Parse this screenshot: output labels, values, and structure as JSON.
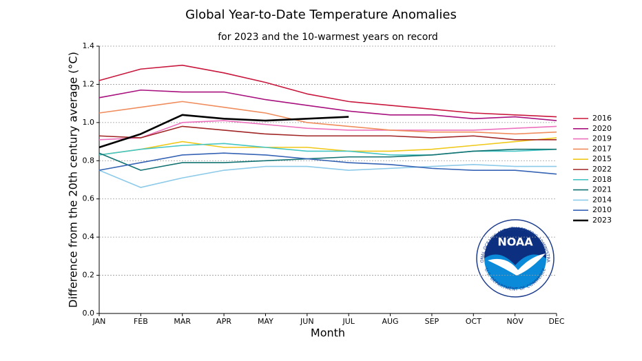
{
  "chart_data": {
    "type": "line",
    "title": "Global Year-to-Date Temperature Anomalies",
    "subtitle": "for 2023 and the 10-warmest years on record",
    "x_label": "Month",
    "y_label": "Difference from the 20th century average (°C)",
    "categories": [
      "JAN",
      "FEB",
      "MAR",
      "APR",
      "MAY",
      "JUN",
      "JUL",
      "AUG",
      "SEP",
      "OCT",
      "NOV",
      "DEC"
    ],
    "ylim": [
      0,
      1.4
    ],
    "yticks": [
      {
        "value": 0,
        "label": "0.0"
      },
      0.2,
      0.4,
      0.6,
      0.8,
      {
        "value": 1,
        "label": "1.0"
      },
      1.2,
      1.4
    ],
    "grid": true,
    "legend": "right",
    "series": [
      {
        "name": "2016",
        "color": "#c8163c",
        "values": [
          1.22,
          1.28,
          1.3,
          1.26,
          1.21,
          1.15,
          1.11,
          1.09,
          1.07,
          1.05,
          1.04,
          1.03
        ]
      },
      {
        "name": "2020",
        "color": "#a8107e",
        "values": [
          1.13,
          1.17,
          1.16,
          1.16,
          1.12,
          1.09,
          1.06,
          1.04,
          1.04,
          1.02,
          1.03,
          1.01
        ]
      },
      {
        "name": "2019",
        "color": "#ec70bc",
        "values": [
          0.91,
          0.92,
          1.0,
          1.01,
          0.99,
          0.97,
          0.96,
          0.96,
          0.96,
          0.96,
          0.97,
          0.98
        ]
      },
      {
        "name": "2017",
        "color": "#f08c5c",
        "values": [
          1.05,
          1.08,
          1.11,
          1.08,
          1.05,
          1.0,
          0.98,
          0.96,
          0.95,
          0.95,
          0.94,
          0.95
        ]
      },
      {
        "name": "2015",
        "color": "#f0c818",
        "values": [
          0.83,
          0.86,
          0.9,
          0.87,
          0.87,
          0.87,
          0.85,
          0.85,
          0.86,
          0.88,
          0.9,
          0.92
        ]
      },
      {
        "name": "2022",
        "color": "#a02424",
        "values": [
          0.93,
          0.92,
          0.98,
          0.96,
          0.94,
          0.93,
          0.93,
          0.93,
          0.92,
          0.93,
          0.91,
          0.91
        ]
      },
      {
        "name": "2018",
        "color": "#44c4c4",
        "values": [
          0.83,
          0.86,
          0.88,
          0.89,
          0.87,
          0.85,
          0.85,
          0.83,
          0.83,
          0.85,
          0.85,
          0.86
        ]
      },
      {
        "name": "2021",
        "color": "#127272",
        "values": [
          0.84,
          0.75,
          0.79,
          0.79,
          0.8,
          0.81,
          0.82,
          0.82,
          0.83,
          0.85,
          0.86,
          0.86
        ]
      },
      {
        "name": "2014",
        "color": "#8ccaea",
        "values": [
          0.75,
          0.66,
          0.71,
          0.75,
          0.77,
          0.77,
          0.75,
          0.76,
          0.77,
          0.78,
          0.77,
          0.77
        ]
      },
      {
        "name": "2010",
        "color": "#3462b4",
        "values": [
          0.75,
          0.79,
          0.83,
          0.84,
          0.83,
          0.81,
          0.79,
          0.78,
          0.76,
          0.75,
          0.75,
          0.73
        ]
      },
      {
        "name": "2023",
        "color": "#000000",
        "values": [
          0.87,
          0.94,
          1.04,
          1.02,
          1.01,
          1.02,
          1.03,
          null,
          null,
          null,
          null,
          null
        ]
      }
    ],
    "logo": {
      "text": "NOAA",
      "ring_top": "NATIONAL OCEANIC AND ATMOSPHERIC ADMINISTRATION",
      "ring_bottom": "U.S. DEPARTMENT OF COMMERCE"
    }
  }
}
